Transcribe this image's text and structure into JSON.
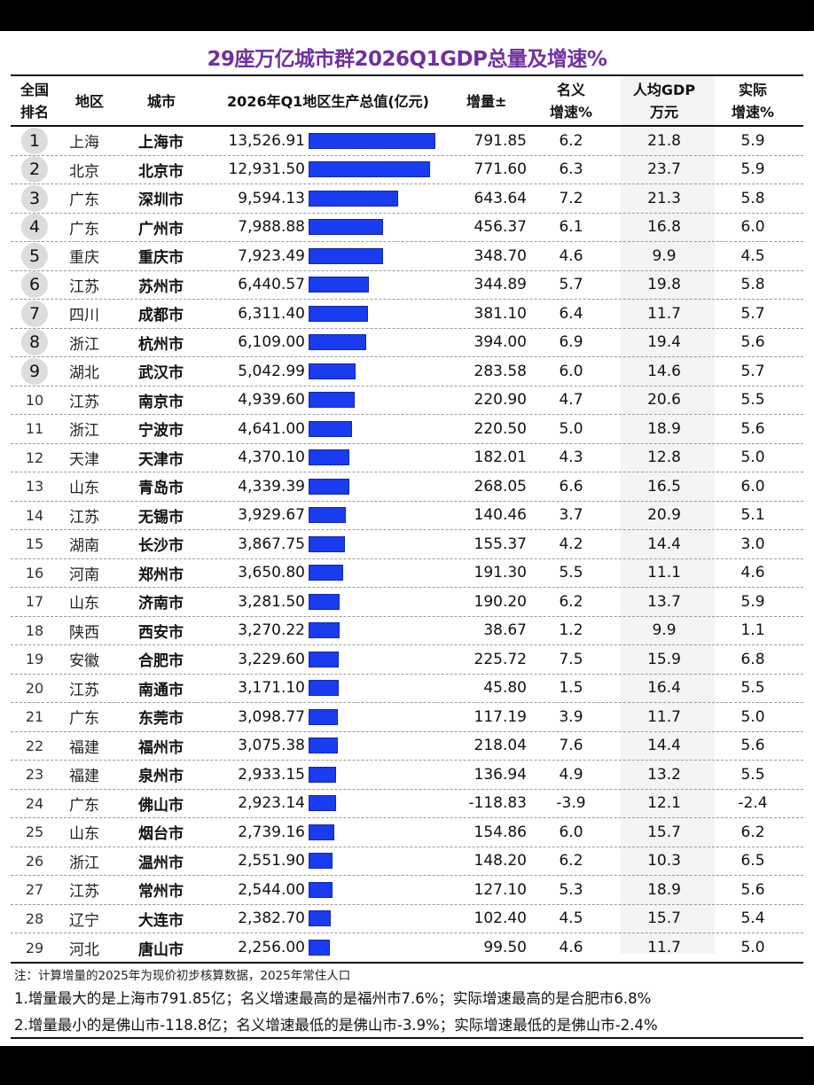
{
  "title": "29座万亿城市群2026Q1GDP总量及增速%",
  "header": {
    "rank": [
      "全国",
      "排名"
    ],
    "region": "地区",
    "city": "城市",
    "gdp": "2026年Q1地区生产总值(亿元)",
    "increase": "增量±",
    "nominal": [
      "名义",
      "增速%"
    ],
    "per_capita": [
      "人均GDP",
      "万元"
    ],
    "real": [
      "实际",
      "增速%"
    ]
  },
  "rows": [
    {
      "rank": "1",
      "region": "上海",
      "city": "上海市",
      "gdp": "13,526.91",
      "gdp_value": 13526.91,
      "increase": "791.85",
      "nominal": "6.2",
      "per_capita": "21.8",
      "real": "5.9"
    },
    {
      "rank": "2",
      "region": "北京",
      "city": "北京市",
      "gdp": "12,931.50",
      "gdp_value": 12931.5,
      "increase": "771.60",
      "nominal": "6.3",
      "per_capita": "23.7",
      "real": "5.9"
    },
    {
      "rank": "3",
      "region": "广东",
      "city": "深圳市",
      "gdp": "9,594.13",
      "gdp_value": 9594.13,
      "increase": "643.64",
      "nominal": "7.2",
      "per_capita": "21.3",
      "real": "5.8"
    },
    {
      "rank": "4",
      "region": "广东",
      "city": "广州市",
      "gdp": "7,988.88",
      "gdp_value": 7988.88,
      "increase": "456.37",
      "nominal": "6.1",
      "per_capita": "16.8",
      "real": "6.0"
    },
    {
      "rank": "5",
      "region": "重庆",
      "city": "重庆市",
      "gdp": "7,923.49",
      "gdp_value": 7923.49,
      "increase": "348.70",
      "nominal": "4.6",
      "per_capita": "9.9",
      "real": "4.5"
    },
    {
      "rank": "6",
      "region": "江苏",
      "city": "苏州市",
      "gdp": "6,440.57",
      "gdp_value": 6440.57,
      "increase": "344.89",
      "nominal": "5.7",
      "per_capita": "19.8",
      "real": "5.8"
    },
    {
      "rank": "7",
      "region": "四川",
      "city": "成都市",
      "gdp": "6,311.40",
      "gdp_value": 6311.4,
      "increase": "381.10",
      "nominal": "6.4",
      "per_capita": "11.7",
      "real": "5.7"
    },
    {
      "rank": "8",
      "region": "浙江",
      "city": "杭州市",
      "gdp": "6,109.00",
      "gdp_value": 6109.0,
      "increase": "394.00",
      "nominal": "6.9",
      "per_capita": "19.4",
      "real": "5.6"
    },
    {
      "rank": "9",
      "region": "湖北",
      "city": "武汉市",
      "gdp": "5,042.99",
      "gdp_value": 5042.99,
      "increase": "283.58",
      "nominal": "6.0",
      "per_capita": "14.6",
      "real": "5.7"
    },
    {
      "rank": "10",
      "region": "江苏",
      "city": "南京市",
      "gdp": "4,939.60",
      "gdp_value": 4939.6,
      "increase": "220.90",
      "nominal": "4.7",
      "per_capita": "20.6",
      "real": "5.5"
    },
    {
      "rank": "11",
      "region": "浙江",
      "city": "宁波市",
      "gdp": "4,641.00",
      "gdp_value": 4641.0,
      "increase": "220.50",
      "nominal": "5.0",
      "per_capita": "18.9",
      "real": "5.6"
    },
    {
      "rank": "12",
      "region": "天津",
      "city": "天津市",
      "gdp": "4,370.10",
      "gdp_value": 4370.1,
      "increase": "182.01",
      "nominal": "4.3",
      "per_capita": "12.8",
      "real": "5.0"
    },
    {
      "rank": "13",
      "region": "山东",
      "city": "青岛市",
      "gdp": "4,339.39",
      "gdp_value": 4339.39,
      "increase": "268.05",
      "nominal": "6.6",
      "per_capita": "16.5",
      "real": "6.0"
    },
    {
      "rank": "14",
      "region": "江苏",
      "city": "无锡市",
      "gdp": "3,929.67",
      "gdp_value": 3929.67,
      "increase": "140.46",
      "nominal": "3.7",
      "per_capita": "20.9",
      "real": "5.1"
    },
    {
      "rank": "15",
      "region": "湖南",
      "city": "长沙市",
      "gdp": "3,867.75",
      "gdp_value": 3867.75,
      "increase": "155.37",
      "nominal": "4.2",
      "per_capita": "14.4",
      "real": "3.0"
    },
    {
      "rank": "16",
      "region": "河南",
      "city": "郑州市",
      "gdp": "3,650.80",
      "gdp_value": 3650.8,
      "increase": "191.30",
      "nominal": "5.5",
      "per_capita": "11.1",
      "real": "4.6"
    },
    {
      "rank": "17",
      "region": "山东",
      "city": "济南市",
      "gdp": "3,281.50",
      "gdp_value": 3281.5,
      "increase": "190.20",
      "nominal": "6.2",
      "per_capita": "13.7",
      "real": "5.9"
    },
    {
      "rank": "18",
      "region": "陕西",
      "city": "西安市",
      "gdp": "3,270.22",
      "gdp_value": 3270.22,
      "increase": "38.67",
      "nominal": "1.2",
      "per_capita": "9.9",
      "real": "1.1"
    },
    {
      "rank": "19",
      "region": "安徽",
      "city": "合肥市",
      "gdp": "3,229.60",
      "gdp_value": 3229.6,
      "increase": "225.72",
      "nominal": "7.5",
      "per_capita": "15.9",
      "real": "6.8"
    },
    {
      "rank": "20",
      "region": "江苏",
      "city": "南通市",
      "gdp": "3,171.10",
      "gdp_value": 3171.1,
      "increase": "45.80",
      "nominal": "1.5",
      "per_capita": "16.4",
      "real": "5.5"
    },
    {
      "rank": "21",
      "region": "广东",
      "city": "东莞市",
      "gdp": "3,098.77",
      "gdp_value": 3098.77,
      "increase": "117.19",
      "nominal": "3.9",
      "per_capita": "11.7",
      "real": "5.0"
    },
    {
      "rank": "22",
      "region": "福建",
      "city": "福州市",
      "gdp": "3,075.38",
      "gdp_value": 3075.38,
      "increase": "218.04",
      "nominal": "7.6",
      "per_capita": "14.4",
      "real": "5.6"
    },
    {
      "rank": "23",
      "region": "福建",
      "city": "泉州市",
      "gdp": "2,933.15",
      "gdp_value": 2933.15,
      "increase": "136.94",
      "nominal": "4.9",
      "per_capita": "13.2",
      "real": "5.5"
    },
    {
      "rank": "24",
      "region": "广东",
      "city": "佛山市",
      "gdp": "2,923.14",
      "gdp_value": 2923.14,
      "increase": "-118.83",
      "nominal": "-3.9",
      "per_capita": "12.1",
      "real": "-2.4"
    },
    {
      "rank": "25",
      "region": "山东",
      "city": "烟台市",
      "gdp": "2,739.16",
      "gdp_value": 2739.16,
      "increase": "154.86",
      "nominal": "6.0",
      "per_capita": "15.7",
      "real": "6.2"
    },
    {
      "rank": "26",
      "region": "浙江",
      "city": "温州市",
      "gdp": "2,551.90",
      "gdp_value": 2551.9,
      "increase": "148.20",
      "nominal": "6.2",
      "per_capita": "10.3",
      "real": "6.5"
    },
    {
      "rank": "27",
      "region": "江苏",
      "city": "常州市",
      "gdp": "2,544.00",
      "gdp_value": 2544.0,
      "increase": "127.10",
      "nominal": "5.3",
      "per_capita": "18.9",
      "real": "5.6"
    },
    {
      "rank": "28",
      "region": "辽宁",
      "city": "大连市",
      "gdp": "2,382.70",
      "gdp_value": 2382.7,
      "increase": "102.40",
      "nominal": "4.5",
      "per_capita": "15.7",
      "real": "5.4"
    },
    {
      "rank": "29",
      "region": "河北",
      "city": "唐山市",
      "gdp": "2,256.00",
      "gdp_value": 2256.0,
      "increase": "99.50",
      "nominal": "4.6",
      "per_capita": "11.7",
      "real": "5.0"
    }
  ],
  "notes": {
    "note0": "注：计算增量的2025年为现价初步核算数据，2025年常住人口",
    "note1": "1.增量最大的是上海市791.85亿；名义增速最高的是福州市7.6%；实际增速最高的是合肥市6.8%",
    "note2": "2.增量最小的是佛山市-118.8亿；名义增速最低的是佛山市-3.9%；实际增速最低的是佛山市-2.4%"
  },
  "colors": {
    "title": "#7030a0",
    "bar": "#1a3cf0",
    "rank_circle": "#dcdcdc"
  },
  "chart_data": {
    "type": "table",
    "title": "29座万亿城市群2026Q1GDP总量及增速%",
    "columns": [
      "全国排名",
      "地区",
      "城市",
      "2026年Q1地区生产总值(亿元)",
      "增量±",
      "名义增速%",
      "人均GDP万元",
      "实际增速%"
    ],
    "embedded_bar": {
      "series": "2026年Q1地区生产总值(亿元)",
      "max": 13526.91
    },
    "categories": [
      "上海市",
      "北京市",
      "深圳市",
      "广州市",
      "重庆市",
      "苏州市",
      "成都市",
      "杭州市",
      "武汉市",
      "南京市",
      "宁波市",
      "天津市",
      "青岛市",
      "无锡市",
      "长沙市",
      "郑州市",
      "济南市",
      "西安市",
      "合肥市",
      "南通市",
      "东莞市",
      "福州市",
      "泉州市",
      "佛山市",
      "烟台市",
      "温州市",
      "常州市",
      "大连市",
      "唐山市"
    ],
    "series": [
      {
        "name": "2026年Q1地区生产总值(亿元)",
        "values": [
          13526.91,
          12931.5,
          9594.13,
          7988.88,
          7923.49,
          6440.57,
          6311.4,
          6109.0,
          5042.99,
          4939.6,
          4641.0,
          4370.1,
          4339.39,
          3929.67,
          3867.75,
          3650.8,
          3281.5,
          3270.22,
          3229.6,
          3171.1,
          3098.77,
          3075.38,
          2933.15,
          2923.14,
          2739.16,
          2551.9,
          2544.0,
          2382.7,
          2256.0
        ]
      },
      {
        "name": "增量±",
        "values": [
          791.85,
          771.6,
          643.64,
          456.37,
          348.7,
          344.89,
          381.1,
          394.0,
          283.58,
          220.9,
          220.5,
          182.01,
          268.05,
          140.46,
          155.37,
          191.3,
          190.2,
          38.67,
          225.72,
          45.8,
          117.19,
          218.04,
          136.94,
          -118.83,
          154.86,
          148.2,
          127.1,
          102.4,
          99.5
        ]
      },
      {
        "name": "名义增速%",
        "values": [
          6.2,
          6.3,
          7.2,
          6.1,
          4.6,
          5.7,
          6.4,
          6.9,
          6.0,
          4.7,
          5.0,
          4.3,
          6.6,
          3.7,
          4.2,
          5.5,
          6.2,
          1.2,
          7.5,
          1.5,
          3.9,
          7.6,
          4.9,
          -3.9,
          6.0,
          6.2,
          5.3,
          4.5,
          4.6
        ]
      },
      {
        "name": "人均GDP万元",
        "values": [
          21.8,
          23.7,
          21.3,
          16.8,
          9.9,
          19.8,
          11.7,
          19.4,
          14.6,
          20.6,
          18.9,
          12.8,
          16.5,
          20.9,
          14.4,
          11.1,
          13.7,
          9.9,
          15.9,
          16.4,
          11.7,
          14.4,
          13.2,
          12.1,
          15.7,
          10.3,
          18.9,
          15.7,
          11.7
        ]
      },
      {
        "name": "实际增速%",
        "values": [
          5.9,
          5.9,
          5.8,
          6.0,
          4.5,
          5.8,
          5.7,
          5.6,
          5.7,
          5.5,
          5.6,
          5.0,
          6.0,
          5.1,
          3.0,
          4.6,
          5.9,
          1.1,
          6.8,
          5.5,
          5.0,
          5.6,
          5.5,
          -2.4,
          6.2,
          6.5,
          5.6,
          5.4,
          5.0
        ]
      }
    ]
  }
}
